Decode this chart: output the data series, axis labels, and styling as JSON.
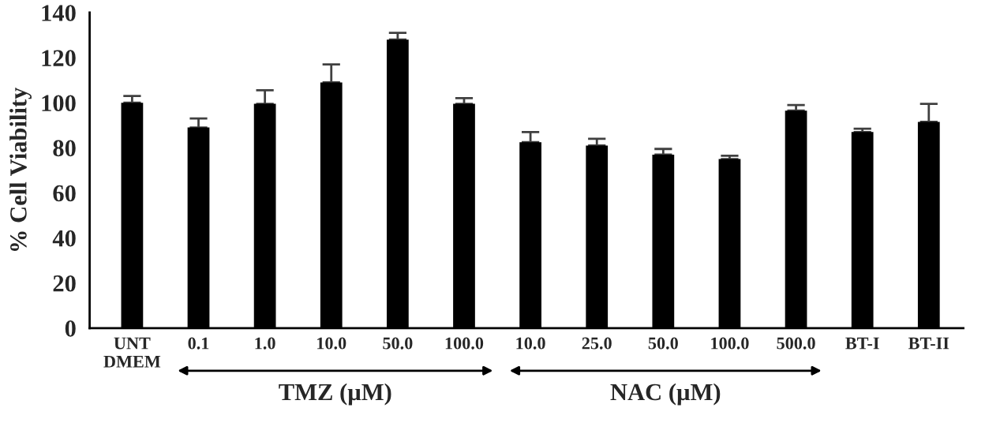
{
  "chart_data": {
    "type": "bar",
    "ylabel": "% Cell Viability",
    "categories": [
      "UNT\nDMEM",
      "0.1",
      "1.0",
      "10.0",
      "50.0",
      "100.0",
      "10.0",
      "25.0",
      "50.0",
      "100.0",
      "500.0",
      "BT-I",
      "BT-II"
    ],
    "values": [
      100,
      89,
      99.5,
      109,
      128,
      99.5,
      82.5,
      81,
      77,
      75,
      96.5,
      87,
      91.5
    ],
    "errors": [
      [
        100,
        103
      ],
      [
        89,
        93
      ],
      [
        99.5,
        105.5
      ],
      [
        109,
        117
      ],
      [
        128,
        131
      ],
      [
        99.5,
        102
      ],
      [
        82.5,
        87
      ],
      [
        81,
        84
      ],
      [
        77,
        79.5
      ],
      [
        75,
        76.5
      ],
      [
        96.5,
        99
      ],
      [
        87,
        88.5
      ],
      [
        91.5,
        99.5
      ]
    ],
    "color": "#000000",
    "ylim": [
      0,
      140
    ],
    "yticks": [
      0,
      20,
      40,
      60,
      80,
      100,
      120,
      140
    ],
    "grid": false,
    "annotations": [
      "TMZ (µM)",
      "NAC (µM)"
    ]
  }
}
